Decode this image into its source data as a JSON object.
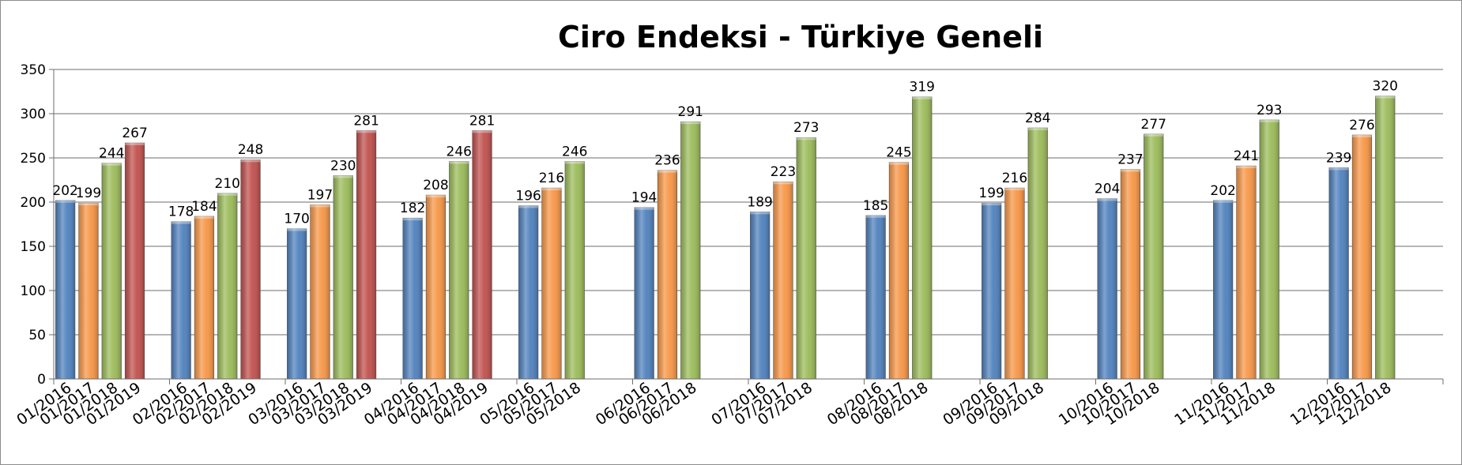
{
  "chart_data": {
    "type": "bar",
    "title": "Ciro Endeksi - Türkiye Geneli",
    "xlabel": "",
    "ylabel": "",
    "ylim": [
      0,
      350
    ],
    "yticks": [
      0,
      50,
      100,
      150,
      200,
      250,
      300,
      350
    ],
    "grid": true,
    "legend": "none",
    "groups": [
      {
        "bars": [
          {
            "label": "01/2016",
            "value": 202,
            "color": "#4f81bd"
          },
          {
            "label": "01/2017",
            "value": 199,
            "color": "#f79646"
          },
          {
            "label": "01/2018",
            "value": 244,
            "color": "#9bbb59"
          },
          {
            "label": "01/2019",
            "value": 267,
            "color": "#c0504d"
          }
        ]
      },
      {
        "bars": [
          {
            "label": "02/2016",
            "value": 178,
            "color": "#4f81bd"
          },
          {
            "label": "02/2017",
            "value": 184,
            "color": "#f79646"
          },
          {
            "label": "02/2018",
            "value": 210,
            "color": "#9bbb59"
          },
          {
            "label": "02/2019",
            "value": 248,
            "color": "#c0504d"
          }
        ]
      },
      {
        "bars": [
          {
            "label": "03/2016",
            "value": 170,
            "color": "#4f81bd"
          },
          {
            "label": "03/2017",
            "value": 197,
            "color": "#f79646"
          },
          {
            "label": "03/2018",
            "value": 230,
            "color": "#9bbb59"
          },
          {
            "label": "03/2019",
            "value": 281,
            "color": "#c0504d"
          }
        ]
      },
      {
        "bars": [
          {
            "label": "04/2016",
            "value": 182,
            "color": "#4f81bd"
          },
          {
            "label": "04/2017",
            "value": 208,
            "color": "#f79646"
          },
          {
            "label": "04/2018",
            "value": 246,
            "color": "#9bbb59"
          },
          {
            "label": "04/2019",
            "value": 281,
            "color": "#c0504d"
          }
        ]
      },
      {
        "bars": [
          {
            "label": "05/2016",
            "value": 196,
            "color": "#4f81bd"
          },
          {
            "label": "05/2017",
            "value": 216,
            "color": "#f79646"
          },
          {
            "label": "05/2018",
            "value": 246,
            "color": "#9bbb59"
          }
        ]
      },
      {
        "bars": [
          {
            "label": "06/2016",
            "value": 194,
            "color": "#4f81bd"
          },
          {
            "label": "06/2017",
            "value": 236,
            "color": "#f79646"
          },
          {
            "label": "06/2018",
            "value": 291,
            "color": "#9bbb59"
          }
        ]
      },
      {
        "bars": [
          {
            "label": "07/2016",
            "value": 189,
            "color": "#4f81bd"
          },
          {
            "label": "07/2017",
            "value": 223,
            "color": "#f79646"
          },
          {
            "label": "07/2018",
            "value": 273,
            "color": "#9bbb59"
          }
        ]
      },
      {
        "bars": [
          {
            "label": "08/2016",
            "value": 185,
            "color": "#4f81bd"
          },
          {
            "label": "08/2017",
            "value": 245,
            "color": "#f79646"
          },
          {
            "label": "08/2018",
            "value": 319,
            "color": "#9bbb59"
          }
        ]
      },
      {
        "bars": [
          {
            "label": "09/2016",
            "value": 199,
            "color": "#4f81bd"
          },
          {
            "label": "09/2017",
            "value": 216,
            "color": "#f79646"
          },
          {
            "label": "09/2018",
            "value": 284,
            "color": "#9bbb59"
          }
        ]
      },
      {
        "bars": [
          {
            "label": "10/2016",
            "value": 204,
            "color": "#4f81bd"
          },
          {
            "label": "10/2017",
            "value": 237,
            "color": "#f79646"
          },
          {
            "label": "10/2018",
            "value": 277,
            "color": "#9bbb59"
          }
        ]
      },
      {
        "bars": [
          {
            "label": "11/2016",
            "value": 202,
            "color": "#4f81bd"
          },
          {
            "label": "11/2017",
            "value": 241,
            "color": "#f79646"
          },
          {
            "label": "11/2018",
            "value": 293,
            "color": "#9bbb59"
          }
        ]
      },
      {
        "bars": [
          {
            "label": "12/2016",
            "value": 239,
            "color": "#4f81bd"
          },
          {
            "label": "12/2017",
            "value": 276,
            "color": "#f79646"
          },
          {
            "label": "12/2018",
            "value": 320,
            "color": "#9bbb59"
          }
        ]
      }
    ]
  }
}
